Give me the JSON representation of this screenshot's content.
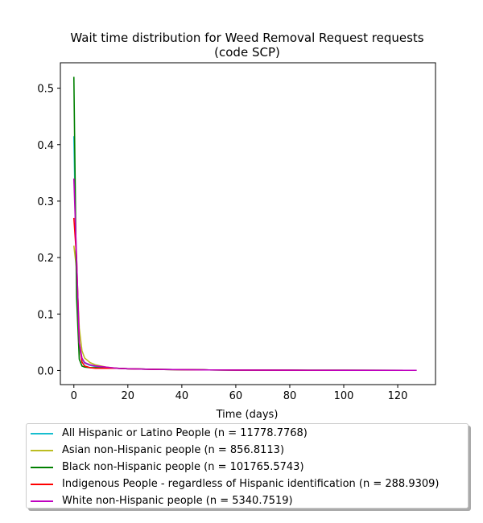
{
  "chart_data": {
    "type": "line",
    "title_lines": [
      "Wait time distribution  for Weed Removal Request  requests",
      "(code SCP)"
    ],
    "xlabel": "Time (days)",
    "ylabel": "",
    "xlim": [
      -5,
      134
    ],
    "ylim": [
      -0.025,
      0.545
    ],
    "xticks": [
      0,
      20,
      40,
      60,
      80,
      100,
      120
    ],
    "yticks": [
      0.0,
      0.1,
      0.2,
      0.3,
      0.4,
      0.5
    ],
    "ytick_labels": [
      "0.0",
      "0.1",
      "0.2",
      "0.3",
      "0.4",
      "0.5"
    ],
    "grid": false,
    "legend_position": "below",
    "series": [
      {
        "name": "All Hispanic or Latino People (n = 11778.7768)",
        "color": "#17becf",
        "x": [
          0,
          1,
          2,
          3,
          4,
          6,
          8,
          12,
          16,
          20,
          30,
          40,
          50,
          60,
          80,
          100,
          127
        ],
        "y": [
          0.415,
          0.16,
          0.04,
          0.02,
          0.013,
          0.009,
          0.007,
          0.005,
          0.004,
          0.003,
          0.002,
          0.0015,
          0.001,
          0.0008,
          0.0005,
          0.0004,
          0.0003
        ]
      },
      {
        "name": "Asian non-Hispanic people (n = 856.8113)",
        "color": "#bcbd22",
        "x": [
          0,
          1,
          2,
          3,
          4,
          6,
          8,
          12,
          16,
          20,
          30,
          40,
          50,
          60,
          80,
          100,
          127
        ],
        "y": [
          0.221,
          0.18,
          0.075,
          0.035,
          0.022,
          0.014,
          0.01,
          0.006,
          0.004,
          0.003,
          0.002,
          0.0015,
          0.001,
          0.0008,
          0.0005,
          0.0004,
          0.0003
        ]
      },
      {
        "name": "Black non-Hispanic people (n = 101765.5743)",
        "color": "#008000",
        "x": [
          0,
          1,
          2,
          3,
          4,
          6,
          8,
          12,
          16,
          20,
          30,
          40,
          50,
          60,
          80,
          100,
          127
        ],
        "y": [
          0.52,
          0.13,
          0.02,
          0.008,
          0.006,
          0.005,
          0.005,
          0.004,
          0.004,
          0.003,
          0.002,
          0.0015,
          0.001,
          0.0008,
          0.0005,
          0.0004,
          0.0003
        ]
      },
      {
        "name": "Indigenous People - regardless of Hispanic identification (n = 288.9309)",
        "color": "#ff0000",
        "x": [
          0,
          1,
          2,
          3,
          4,
          6,
          8,
          12,
          16,
          20,
          30,
          40,
          50,
          60,
          80,
          100,
          127
        ],
        "y": [
          0.27,
          0.2,
          0.05,
          0.015,
          0.008,
          0.005,
          0.004,
          0.004,
          0.004,
          0.003,
          0.002,
          0.0015,
          0.001,
          0.0008,
          0.0005,
          0.0004,
          0.0003
        ]
      },
      {
        "name": "White non-Hispanic people (n = 5340.7519)",
        "color": "#bf00bf",
        "x": [
          0,
          1,
          2,
          3,
          4,
          6,
          8,
          12,
          16,
          20,
          30,
          40,
          50,
          60,
          80,
          100,
          127
        ],
        "y": [
          0.34,
          0.2,
          0.05,
          0.022,
          0.014,
          0.01,
          0.008,
          0.006,
          0.004,
          0.003,
          0.002,
          0.0015,
          0.001,
          0.0008,
          0.0005,
          0.0004,
          0.0003
        ]
      }
    ]
  }
}
